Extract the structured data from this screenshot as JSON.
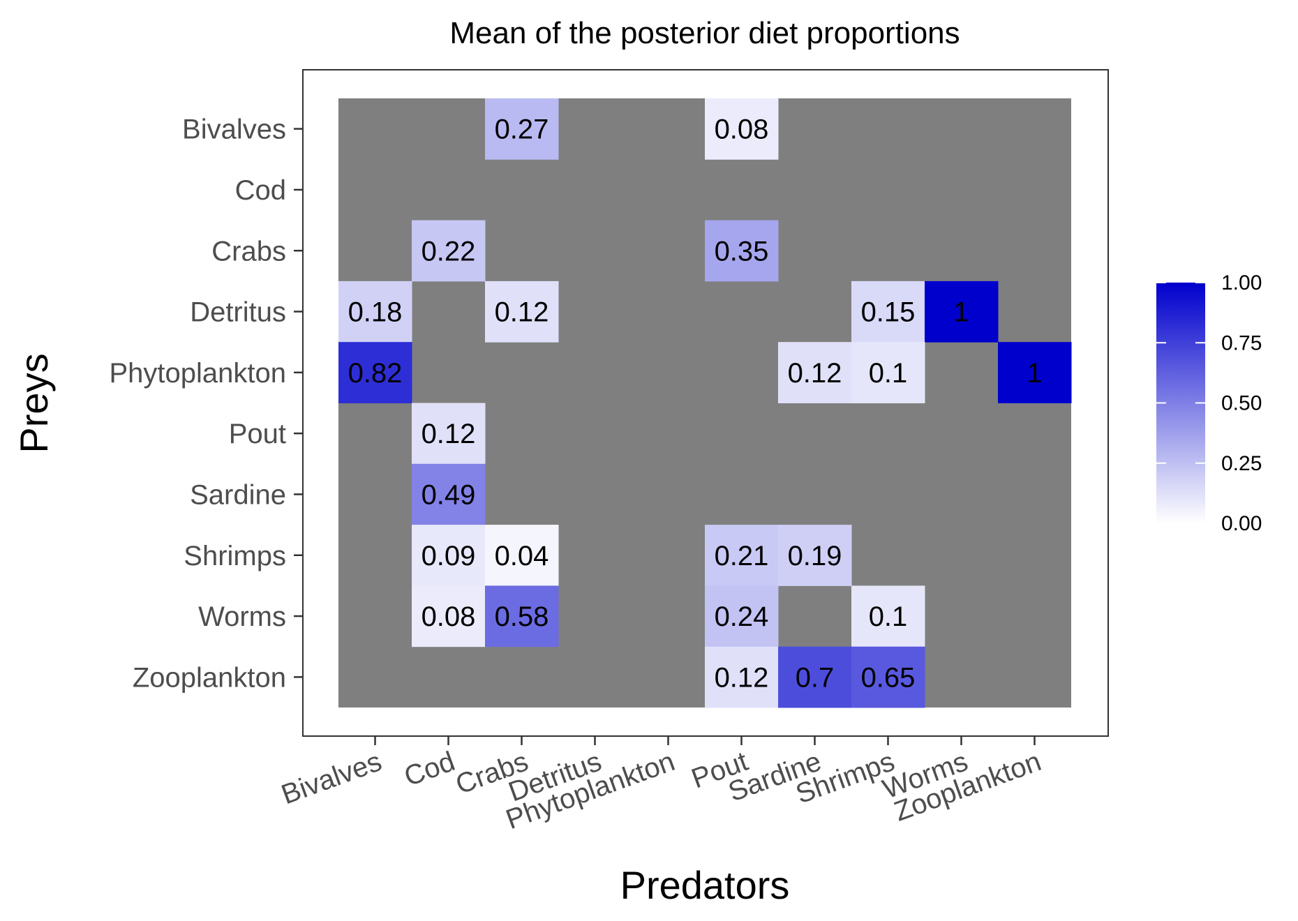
{
  "chart_data": {
    "type": "heatmap",
    "title": "Mean of the posterior diet proportions",
    "xlabel": "Predators",
    "ylabel": "Preys",
    "x_categories": [
      "Bivalves",
      "Cod",
      "Crabs",
      "Detritus",
      "Phytoplankton",
      "Pout",
      "Sardine",
      "Shrimps",
      "Worms",
      "Zooplankton"
    ],
    "y_categories": [
      "Bivalves",
      "Cod",
      "Crabs",
      "Detritus",
      "Phytoplankton",
      "Pout",
      "Sardine",
      "Shrimps",
      "Worms",
      "Zooplankton"
    ],
    "cells": [
      {
        "predator": "Crabs",
        "prey": "Bivalves",
        "value": 0.27,
        "label": "0.27"
      },
      {
        "predator": "Pout",
        "prey": "Bivalves",
        "value": 0.08,
        "label": "0.08"
      },
      {
        "predator": "Cod",
        "prey": "Crabs",
        "value": 0.22,
        "label": "0.22"
      },
      {
        "predator": "Pout",
        "prey": "Crabs",
        "value": 0.35,
        "label": "0.35"
      },
      {
        "predator": "Bivalves",
        "prey": "Detritus",
        "value": 0.18,
        "label": "0.18"
      },
      {
        "predator": "Crabs",
        "prey": "Detritus",
        "value": 0.12,
        "label": "0.12"
      },
      {
        "predator": "Shrimps",
        "prey": "Detritus",
        "value": 0.15,
        "label": "0.15"
      },
      {
        "predator": "Worms",
        "prey": "Detritus",
        "value": 1,
        "label": "1"
      },
      {
        "predator": "Bivalves",
        "prey": "Phytoplankton",
        "value": 0.82,
        "label": "0.82"
      },
      {
        "predator": "Sardine",
        "prey": "Phytoplankton",
        "value": 0.12,
        "label": "0.12"
      },
      {
        "predator": "Shrimps",
        "prey": "Phytoplankton",
        "value": 0.1,
        "label": "0.1"
      },
      {
        "predator": "Zooplankton",
        "prey": "Phytoplankton",
        "value": 1,
        "label": "1"
      },
      {
        "predator": "Cod",
        "prey": "Pout",
        "value": 0.12,
        "label": "0.12"
      },
      {
        "predator": "Cod",
        "prey": "Sardine",
        "value": 0.49,
        "label": "0.49"
      },
      {
        "predator": "Cod",
        "prey": "Shrimps",
        "value": 0.09,
        "label": "0.09"
      },
      {
        "predator": "Crabs",
        "prey": "Shrimps",
        "value": 0.04,
        "label": "0.04"
      },
      {
        "predator": "Pout",
        "prey": "Shrimps",
        "value": 0.21,
        "label": "0.21"
      },
      {
        "predator": "Sardine",
        "prey": "Shrimps",
        "value": 0.19,
        "label": "0.19"
      },
      {
        "predator": "Cod",
        "prey": "Worms",
        "value": 0.08,
        "label": "0.08"
      },
      {
        "predator": "Crabs",
        "prey": "Worms",
        "value": 0.58,
        "label": "0.58"
      },
      {
        "predator": "Pout",
        "prey": "Worms",
        "value": 0.24,
        "label": "0.24"
      },
      {
        "predator": "Shrimps",
        "prey": "Worms",
        "value": 0.1,
        "label": "0.1"
      },
      {
        "predator": "Pout",
        "prey": "Zooplankton",
        "value": 0.12,
        "label": "0.12"
      },
      {
        "predator": "Sardine",
        "prey": "Zooplankton",
        "value": 0.7,
        "label": "0.7"
      },
      {
        "predator": "Shrimps",
        "prey": "Zooplankton",
        "value": 0.65,
        "label": "0.65"
      }
    ],
    "missing_cell_color": "#7f7f7f",
    "color_scale": {
      "low": "#ffffff",
      "high": "#0000cd",
      "limits": [
        0,
        1
      ],
      "legend_ticks": [
        "0.00",
        "0.25",
        "0.50",
        "0.75",
        "1.00"
      ],
      "legend_position": "right"
    },
    "grid": false
  }
}
